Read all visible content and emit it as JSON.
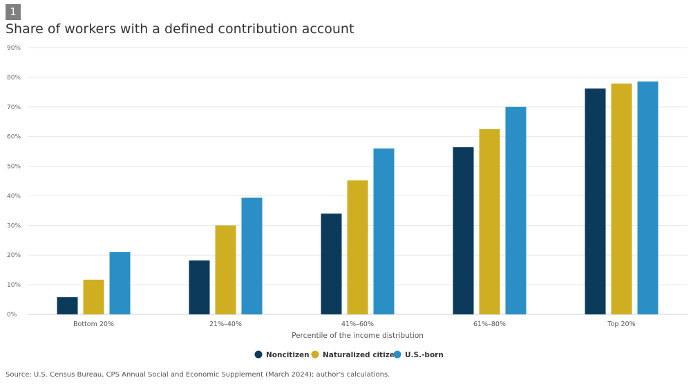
{
  "badge": "1",
  "title": "Share of workers with a defined contribution account",
  "source": "Source: U.S. Census Bureau, CPS Annual Social and Economic Supplement (March 2024); author's calculations.",
  "chart_data": {
    "type": "bar",
    "title": "Share of workers with a defined contribution account",
    "xlabel": "Percentile of the income distribution",
    "ylabel": "",
    "ylim": [
      0,
      90
    ],
    "yticks": [
      "0%",
      "10%",
      "20%",
      "30%",
      "40%",
      "50%",
      "60%",
      "70%",
      "80%",
      "90%"
    ],
    "grid": true,
    "legend": "bottom",
    "categories": [
      "Bottom 20%",
      "21%–40%",
      "41%–60%",
      "61%–80%",
      "Top 20%"
    ],
    "series": [
      {
        "name": "Noncitizen",
        "color": "#0b3a5a",
        "values": [
          5.8,
          18.2,
          34.0,
          56.4,
          76.2
        ]
      },
      {
        "name": "Naturalized citizen",
        "color": "#cfae22",
        "values": [
          11.7,
          30.0,
          45.2,
          62.5,
          77.9
        ]
      },
      {
        "name": "U.S.-born",
        "color": "#2b8fc6",
        "values": [
          21.0,
          39.4,
          56.0,
          70.0,
          78.6
        ]
      }
    ]
  }
}
